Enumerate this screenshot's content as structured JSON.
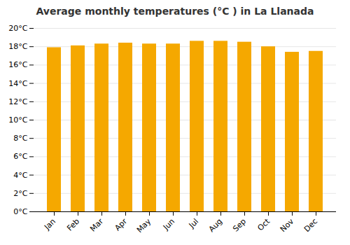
{
  "chart_data": {
    "type": "bar",
    "title": "Average monthly temperatures (°C ) in La Llanada",
    "categories": [
      "Jan",
      "Feb",
      "Mar",
      "Apr",
      "May",
      "Jun",
      "Jul",
      "Aug",
      "Sep",
      "Oct",
      "Nov",
      "Dec"
    ],
    "values": [
      17.9,
      18.1,
      18.3,
      18.4,
      18.3,
      18.3,
      18.6,
      18.6,
      18.5,
      18.0,
      17.4,
      17.5
    ],
    "color": "#F5A800",
    "ylim": [
      0,
      20
    ],
    "yticks": [
      {
        "value": 0,
        "label": "0°C"
      },
      {
        "value": 2,
        "label": "2°C"
      },
      {
        "value": 4,
        "label": "4°C"
      },
      {
        "value": 6,
        "label": "6°C"
      },
      {
        "value": 8,
        "label": "8°C"
      },
      {
        "value": 10,
        "label": "10°C"
      },
      {
        "value": 12,
        "label": "12°C"
      },
      {
        "value": 14,
        "label": "14°C"
      },
      {
        "value": 16,
        "label": "16°C"
      },
      {
        "value": 18,
        "label": "18°C"
      },
      {
        "value": 20,
        "label": "20°C"
      }
    ],
    "grid": true
  }
}
